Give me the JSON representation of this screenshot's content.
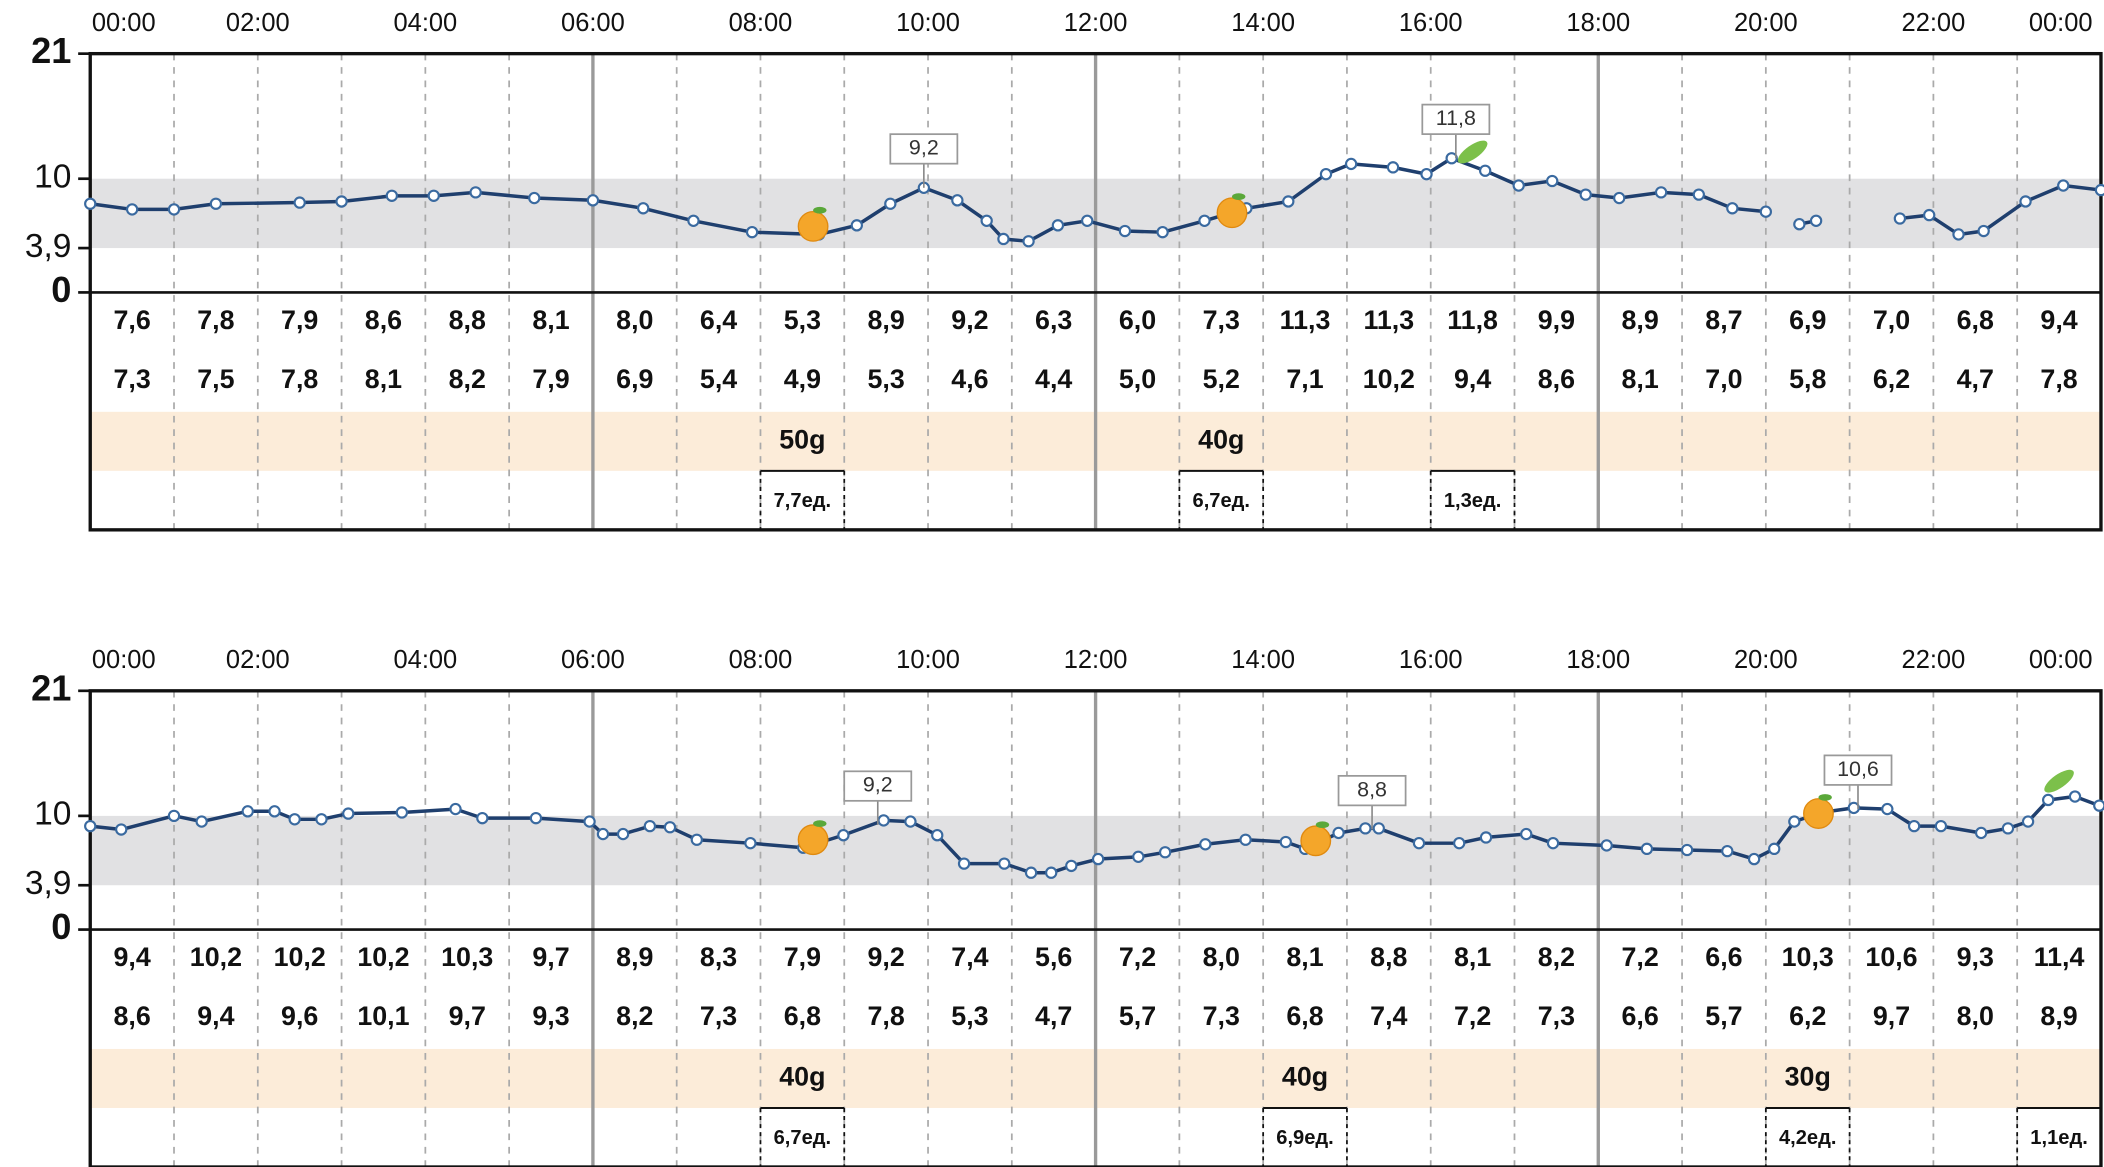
{
  "chart_data": [
    {
      "type": "line",
      "xlim": [
        0,
        24
      ],
      "xticks": [
        {
          "value": 0,
          "label": "00:00"
        },
        {
          "value": 2,
          "label": "02:00"
        },
        {
          "value": 4,
          "label": "04:00"
        },
        {
          "value": 6,
          "label": "06:00"
        },
        {
          "value": 8,
          "label": "08:00"
        },
        {
          "value": 10,
          "label": "10:00"
        },
        {
          "value": 12,
          "label": "12:00"
        },
        {
          "value": 14,
          "label": "14:00"
        },
        {
          "value": 16,
          "label": "16:00"
        },
        {
          "value": 18,
          "label": "18:00"
        },
        {
          "value": 20,
          "label": "20:00"
        },
        {
          "value": 22,
          "label": "22:00"
        },
        {
          "value": 24,
          "label": "00:00"
        }
      ],
      "ylim": [
        0,
        21
      ],
      "yticks": [
        0,
        {
          "value": 3.9,
          "label": "3,9"
        },
        10,
        21
      ],
      "target_range": [
        3.9,
        10
      ],
      "color": "#1f3f6e",
      "x": [
        0,
        0.5,
        1,
        1.5,
        2.5,
        3,
        3.6,
        4.1,
        4.6,
        5.3,
        6,
        6.6,
        7.2,
        7.9,
        8.7,
        9.15,
        9.55,
        9.95,
        10.35,
        10.7,
        10.9,
        11.2,
        11.55,
        11.9,
        12.35,
        12.8,
        13.3,
        13.8,
        14.3,
        14.75,
        15.05,
        15.55,
        15.95,
        16.25,
        16.65,
        17.05,
        17.45,
        17.85,
        18.25,
        18.75,
        19.2,
        19.6,
        20.0,
        20.2,
        20.4,
        20.6,
        21.1,
        21.6,
        21.95,
        22.3,
        22.6,
        23.1,
        23.55,
        24
      ],
      "values": [
        7.8,
        7.3,
        7.3,
        7.8,
        7.9,
        8.0,
        8.5,
        8.5,
        8.8,
        8.3,
        8.1,
        7.4,
        6.3,
        5.3,
        5.1,
        5.9,
        7.8,
        9.2,
        8.1,
        6.3,
        4.7,
        4.5,
        5.9,
        6.3,
        5.4,
        5.3,
        6.3,
        7.4,
        8.0,
        10.4,
        11.3,
        11.0,
        10.4,
        11.8,
        10.7,
        9.4,
        9.8,
        8.6,
        8.3,
        8.8,
        8.6,
        7.4,
        7.1,
        null,
        6.0,
        6.3,
        null,
        6.5,
        6.8,
        5.1,
        5.4,
        8.0,
        9.4,
        9.0
      ],
      "annotations": [
        {
          "x": 9.95,
          "value": 9.2,
          "label": "9,2"
        },
        {
          "x": 16.3,
          "value": 11.8,
          "label": "11,8"
        }
      ],
      "table": {
        "rows": [
          [
            "7,6",
            "7,8",
            "7,9",
            "8,6",
            "8,8",
            "8,1",
            "8,0",
            "6,4",
            "5,3",
            "8,9",
            "9,2",
            "6,3",
            "6,0",
            "7,3",
            "11,3",
            "11,3",
            "11,8",
            "9,9",
            "8,9",
            "8,7",
            "6,9",
            "7,0",
            "6,8",
            "9,4"
          ],
          [
            "7,3",
            "7,5",
            "7,8",
            "8,1",
            "8,2",
            "7,9",
            "6,9",
            "5,4",
            "4,9",
            "5,3",
            "4,6",
            "4,4",
            "5,0",
            "5,2",
            "7,1",
            "10,2",
            "9,4",
            "8,6",
            "8,1",
            "7,0",
            "5,8",
            "6,2",
            "4,7",
            "7,8"
          ]
        ],
        "carbs": [
          null,
          null,
          null,
          null,
          null,
          null,
          null,
          null,
          "50g",
          null,
          null,
          null,
          null,
          "40g",
          null,
          null,
          null,
          null,
          null,
          null,
          null,
          null,
          null,
          null
        ],
        "insulin": [
          null,
          null,
          null,
          null,
          null,
          null,
          null,
          null,
          "7,7ед.",
          null,
          null,
          null,
          null,
          "6,7ед.",
          null,
          null,
          "1,3ед.",
          null,
          null,
          null,
          null,
          null,
          null,
          null
        ]
      }
    },
    {
      "type": "line",
      "xlim": [
        0,
        24
      ],
      "xticks": [
        {
          "value": 0,
          "label": "00:00"
        },
        {
          "value": 2,
          "label": "02:00"
        },
        {
          "value": 4,
          "label": "04:00"
        },
        {
          "value": 6,
          "label": "06:00"
        },
        {
          "value": 8,
          "label": "08:00"
        },
        {
          "value": 10,
          "label": "10:00"
        },
        {
          "value": 12,
          "label": "12:00"
        },
        {
          "value": 14,
          "label": "14:00"
        },
        {
          "value": 16,
          "label": "16:00"
        },
        {
          "value": 18,
          "label": "18:00"
        },
        {
          "value": 20,
          "label": "20:00"
        },
        {
          "value": 22,
          "label": "22:00"
        },
        {
          "value": 24,
          "label": "00:00"
        }
      ],
      "ylim": [
        0,
        21
      ],
      "yticks": [
        0,
        {
          "value": 3.9,
          "label": "3,9"
        },
        10,
        21
      ],
      "target_range": [
        3.9,
        10
      ],
      "color": "#1f3f6e",
      "x": [
        0,
        0.37,
        1.0,
        1.33,
        1.88,
        2.2,
        2.44,
        2.76,
        3.08,
        3.72,
        4.36,
        4.68,
        5.32,
        5.96,
        6.12,
        6.36,
        6.68,
        6.92,
        7.24,
        7.88,
        8.51,
        8.99,
        9.47,
        9.79,
        10.11,
        10.43,
        10.91,
        11.23,
        11.47,
        11.71,
        12.03,
        12.51,
        12.83,
        13.31,
        13.79,
        14.27,
        14.5,
        14.9,
        15.22,
        15.38,
        15.86,
        16.34,
        16.66,
        17.14,
        17.46,
        18.1,
        18.58,
        19.06,
        19.54,
        19.86,
        20.1,
        20.34,
        20.66,
        21.05,
        21.45,
        21.77,
        22.09,
        22.57,
        22.89,
        23.13,
        23.37,
        23.69,
        23.98
      ],
      "values": [
        9.1,
        8.8,
        10.0,
        9.5,
        10.4,
        10.4,
        9.7,
        9.7,
        10.2,
        10.3,
        10.6,
        9.8,
        9.8,
        9.5,
        8.4,
        8.4,
        9.1,
        9.0,
        7.9,
        7.6,
        7.2,
        8.3,
        9.6,
        9.5,
        8.3,
        5.8,
        5.8,
        5.0,
        5.0,
        5.6,
        6.2,
        6.4,
        6.8,
        7.5,
        7.9,
        7.7,
        7.1,
        8.5,
        8.9,
        8.9,
        7.6,
        7.6,
        8.1,
        8.4,
        7.6,
        7.4,
        7.1,
        7.0,
        6.9,
        6.2,
        7.1,
        9.5,
        10.3,
        10.7,
        10.6,
        9.1,
        9.1,
        8.5,
        8.9,
        9.5,
        11.4,
        11.7,
        10.9
      ],
      "annotations": [
        {
          "x": 9.4,
          "value": 9.2,
          "label": "9,2"
        },
        {
          "x": 15.3,
          "value": 8.8,
          "label": "8,8"
        },
        {
          "x": 21.1,
          "value": 10.6,
          "label": "10,6"
        }
      ],
      "table": {
        "rows": [
          [
            "9,4",
            "10,2",
            "10,2",
            "10,2",
            "10,3",
            "9,7",
            "8,9",
            "8,3",
            "7,9",
            "9,2",
            "7,4",
            "5,6",
            "7,2",
            "8,0",
            "8,1",
            "8,8",
            "8,1",
            "8,2",
            "7,2",
            "6,6",
            "10,3",
            "10,6",
            "9,3",
            "11,4"
          ],
          [
            "8,6",
            "9,4",
            "9,6",
            "10,1",
            "9,7",
            "9,3",
            "8,2",
            "7,3",
            "6,8",
            "7,8",
            "5,3",
            "4,7",
            "5,7",
            "7,3",
            "6,8",
            "7,4",
            "7,2",
            "7,3",
            "6,6",
            "5,7",
            "6,2",
            "9,7",
            "8,0",
            "8,9"
          ]
        ],
        "carbs": [
          null,
          null,
          null,
          null,
          null,
          null,
          null,
          null,
          "40g",
          null,
          null,
          null,
          null,
          null,
          "40g",
          null,
          null,
          null,
          null,
          null,
          "30g",
          null,
          null,
          null
        ],
        "insulin": [
          null,
          null,
          null,
          null,
          null,
          null,
          null,
          null,
          "6,7ед.",
          null,
          null,
          null,
          null,
          null,
          "6,9ед.",
          null,
          null,
          null,
          null,
          null,
          "4,2ед.",
          null,
          null,
          "1,1ед."
        ]
      }
    }
  ]
}
